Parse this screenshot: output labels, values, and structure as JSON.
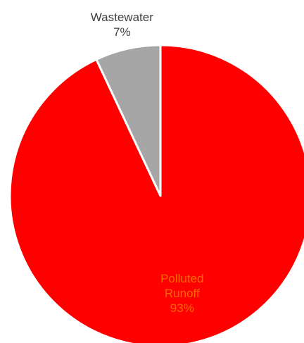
{
  "chart_data": {
    "type": "pie",
    "start_angle_deg": 0,
    "direction": "clockwise",
    "slices": [
      {
        "label": "Polluted Runoff",
        "label_lines": [
          "Polluted",
          "Runoff"
        ],
        "value": 93,
        "value_label": "93%",
        "color": "#ff0000",
        "label_color": "#ff6a00",
        "label_placement": "inside"
      },
      {
        "label": "Wastewater",
        "label_lines": [
          "Wastewater"
        ],
        "value": 7,
        "value_label": "7%",
        "color": "#a6a6a6",
        "label_color": "#404040",
        "label_placement": "outside"
      }
    ],
    "slice_border_color": "#ffffff",
    "legend": "none"
  }
}
